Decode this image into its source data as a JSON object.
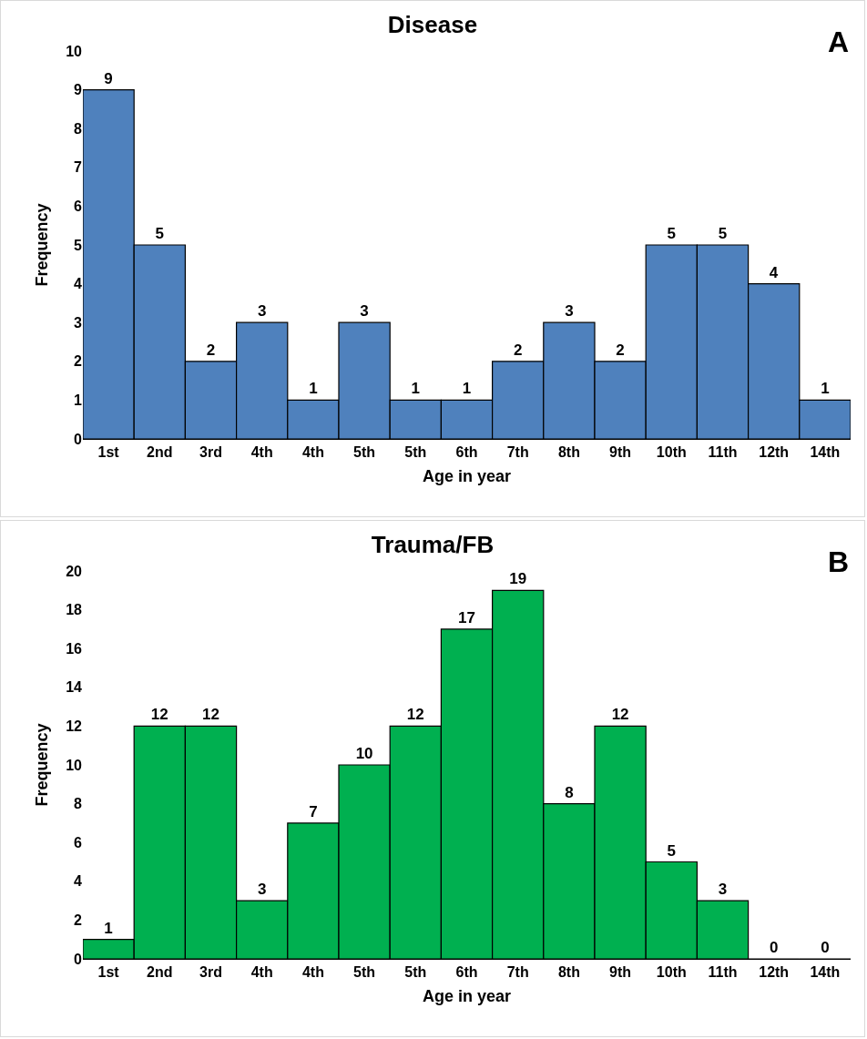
{
  "chart_data": [
    {
      "type": "bar",
      "title": "Disease",
      "xlabel": "Age in year",
      "ylabel": "Frequency",
      "annotations": [
        "A"
      ],
      "categories": [
        "1st",
        "2nd",
        "3rd",
        "4th",
        "4th",
        "5th",
        "5th",
        "6th",
        "7th",
        "8th",
        "9th",
        "10th",
        "11th",
        "12th",
        "14th"
      ],
      "values": [
        9,
        5,
        2,
        3,
        1,
        3,
        1,
        1,
        2,
        3,
        2,
        5,
        5,
        4,
        1
      ],
      "color": "#4f81bd",
      "ylim": [
        0,
        10
      ],
      "yticks": [
        0,
        1,
        2,
        3,
        4,
        5,
        6,
        7,
        8,
        9,
        10
      ],
      "data_labels": true
    },
    {
      "type": "bar",
      "title": "Trauma/FB",
      "xlabel": "Age in year",
      "ylabel": "Frequency",
      "annotations": [
        "B"
      ],
      "categories": [
        "1st",
        "2nd",
        "3rd",
        "4th",
        "4th",
        "5th",
        "5th",
        "6th",
        "7th",
        "8th",
        "9th",
        "10th",
        "11th",
        "12th",
        "14th"
      ],
      "values": [
        1,
        12,
        12,
        3,
        7,
        10,
        12,
        17,
        19,
        8,
        12,
        5,
        3,
        0,
        0
      ],
      "color": "#00b050",
      "ylim": [
        0,
        20
      ],
      "yticks": [
        0,
        2,
        4,
        6,
        8,
        10,
        12,
        14,
        16,
        18,
        20
      ],
      "data_labels": true
    }
  ]
}
